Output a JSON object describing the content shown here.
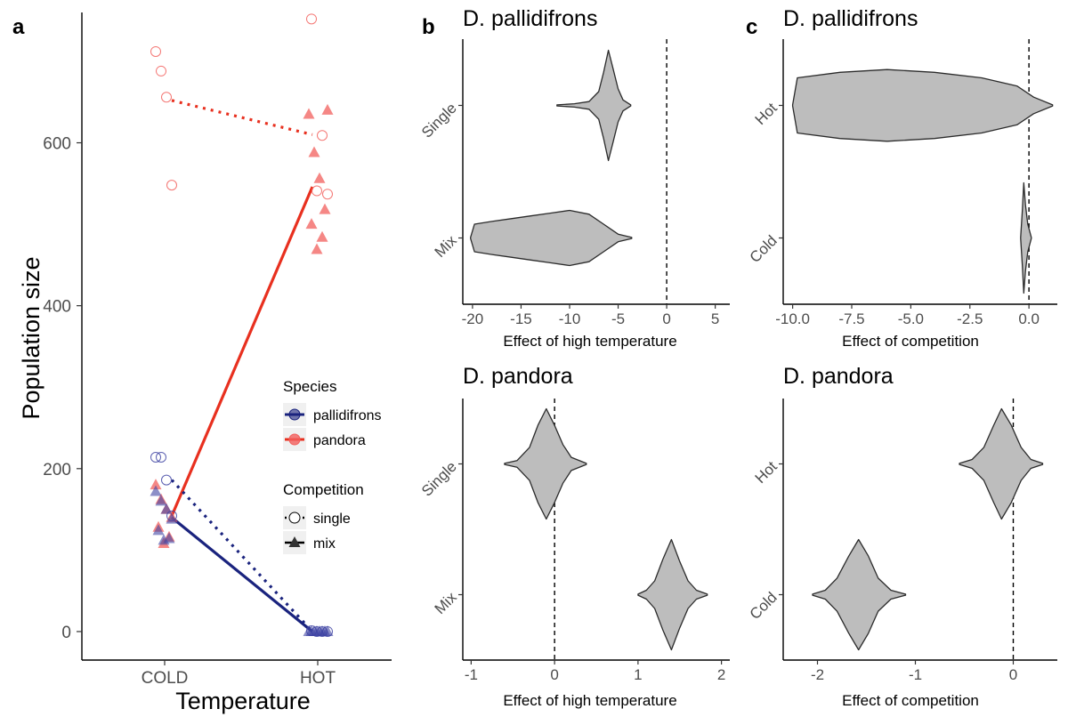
{
  "chart_data": [
    {
      "panel_letter": "a",
      "type": "scatter",
      "xlabel": "Temperature",
      "ylabel": "Population size",
      "categories": [
        "COLD",
        "HOT"
      ],
      "y_ticks": [
        0,
        200,
        400,
        600
      ],
      "ylim": [
        -35,
        760
      ],
      "grid": false,
      "legend": {
        "placement": "right",
        "species_title": "Species",
        "species": [
          {
            "name": "pallidifrons",
            "color": "#1a237e"
          },
          {
            "name": "pandora",
            "color": "#e8301f"
          }
        ],
        "competition_title": "Competition",
        "competition": [
          {
            "name": "single",
            "line": "dotted",
            "marker": "open-circle"
          },
          {
            "name": "mix",
            "line": "solid",
            "marker": "filled-triangle"
          }
        ]
      },
      "series": [
        {
          "species": "pandora",
          "competition": "single",
          "color": "#e8301f",
          "points": [
            {
              "x": "COLD",
              "y": 712
            },
            {
              "x": "COLD",
              "y": 688
            },
            {
              "x": "COLD",
              "y": 656
            },
            {
              "x": "COLD",
              "y": 548
            },
            {
              "x": "HOT",
              "y": 752
            },
            {
              "x": "HOT",
              "y": 609
            },
            {
              "x": "HOT",
              "y": 541
            },
            {
              "x": "HOT",
              "y": 537
            }
          ],
          "means": [
            {
              "x": "COLD",
              "y": 652
            },
            {
              "x": "HOT",
              "y": 610
            }
          ]
        },
        {
          "species": "pandora",
          "competition": "mix",
          "color": "#e8301f",
          "points": [
            {
              "x": "COLD",
              "y": 180
            },
            {
              "x": "COLD",
              "y": 162
            },
            {
              "x": "COLD",
              "y": 150
            },
            {
              "x": "COLD",
              "y": 140
            },
            {
              "x": "COLD",
              "y": 128
            },
            {
              "x": "COLD",
              "y": 116
            },
            {
              "x": "COLD",
              "y": 108
            },
            {
              "x": "HOT",
              "y": 640
            },
            {
              "x": "HOT",
              "y": 635
            },
            {
              "x": "HOT",
              "y": 588
            },
            {
              "x": "HOT",
              "y": 556
            },
            {
              "x": "HOT",
              "y": 518
            },
            {
              "x": "HOT",
              "y": 500
            },
            {
              "x": "HOT",
              "y": 484
            },
            {
              "x": "HOT",
              "y": 469
            }
          ],
          "means": [
            {
              "x": "COLD",
              "y": 142
            },
            {
              "x": "HOT",
              "y": 546
            }
          ]
        },
        {
          "species": "pallidifrons",
          "competition": "single",
          "color": "#1a237e",
          "points": [
            {
              "x": "COLD",
              "y": 214
            },
            {
              "x": "COLD",
              "y": 214
            },
            {
              "x": "COLD",
              "y": 186
            },
            {
              "x": "COLD",
              "y": 142
            },
            {
              "x": "HOT",
              "y": 1
            },
            {
              "x": "HOT",
              "y": 0
            },
            {
              "x": "HOT",
              "y": 0
            },
            {
              "x": "HOT",
              "y": 0
            }
          ],
          "means": [
            {
              "x": "COLD",
              "y": 186
            },
            {
              "x": "HOT",
              "y": 0
            }
          ]
        },
        {
          "species": "pallidifrons",
          "competition": "mix",
          "color": "#1a237e",
          "points": [
            {
              "x": "COLD",
              "y": 172
            },
            {
              "x": "COLD",
              "y": 160
            },
            {
              "x": "COLD",
              "y": 150
            },
            {
              "x": "COLD",
              "y": 138
            },
            {
              "x": "COLD",
              "y": 124
            },
            {
              "x": "COLD",
              "y": 114
            },
            {
              "x": "COLD",
              "y": 112
            },
            {
              "x": "HOT",
              "y": 0
            },
            {
              "x": "HOT",
              "y": 0
            },
            {
              "x": "HOT",
              "y": 0
            },
            {
              "x": "HOT",
              "y": 0
            },
            {
              "x": "HOT",
              "y": 0
            },
            {
              "x": "HOT",
              "y": 0
            },
            {
              "x": "HOT",
              "y": 0
            },
            {
              "x": "HOT",
              "y": 0
            }
          ],
          "means": [
            {
              "x": "COLD",
              "y": 140
            },
            {
              "x": "HOT",
              "y": 0
            }
          ]
        }
      ]
    },
    {
      "panel_letter": "b",
      "type": "violin",
      "title": "D. pallidifrons",
      "xlabel": "Effect of high temperature",
      "categories": [
        "Mix",
        "Single"
      ],
      "x_ticks": [
        "-20",
        "-15",
        "-10",
        "-5",
        "0",
        "5"
      ],
      "xlim": [
        -21,
        6.5
      ],
      "ref_line": 0,
      "violins": [
        {
          "group": "Single",
          "min": -11.3,
          "max": -3.7,
          "profile": [
            [
              -11.3,
              0.01
            ],
            [
              -9.5,
              0.03
            ],
            [
              -8,
              0.07
            ],
            [
              -7,
              0.25
            ],
            [
              -6.5,
              0.6
            ],
            [
              -6,
              1.0
            ],
            [
              -5.5,
              0.65
            ],
            [
              -5,
              0.3
            ],
            [
              -4.5,
              0.1
            ],
            [
              -3.7,
              0.01
            ]
          ]
        },
        {
          "group": "Mix",
          "min": -20.2,
          "max": -3.6,
          "profile": [
            [
              -20.2,
              0.01
            ],
            [
              -19.8,
              0.25
            ],
            [
              -18,
              0.3
            ],
            [
              -16,
              0.35
            ],
            [
              -14,
              0.4
            ],
            [
              -12,
              0.45
            ],
            [
              -10,
              0.5
            ],
            [
              -8,
              0.43
            ],
            [
              -6.5,
              0.25
            ],
            [
              -5,
              0.07
            ],
            [
              -3.6,
              0.01
            ]
          ]
        }
      ]
    },
    {
      "panel_letter": "c",
      "type": "violin",
      "title": "D. pallidifrons",
      "xlabel": "Effect of competition",
      "categories": [
        "Cold",
        "Hot"
      ],
      "x_ticks": [
        "-10.0",
        "-7.5",
        "-5.0",
        "-2.5",
        "0.0"
      ],
      "xlim": [
        -10.4,
        1.2
      ],
      "ref_line": 0,
      "violins": [
        {
          "group": "Hot",
          "min": -10.0,
          "max": 1.0,
          "profile": [
            [
              -10,
              0.01
            ],
            [
              -9.8,
              0.5
            ],
            [
              -8,
              0.6
            ],
            [
              -6,
              0.65
            ],
            [
              -4,
              0.6
            ],
            [
              -2,
              0.5
            ],
            [
              -0.5,
              0.35
            ],
            [
              0.2,
              0.15
            ],
            [
              1.0,
              0.01
            ]
          ]
        },
        {
          "group": "Cold",
          "min": -0.35,
          "max": 0.1,
          "profile": [
            [
              -0.35,
              0.01
            ],
            [
              -0.28,
              0.5
            ],
            [
              -0.22,
              1.0
            ],
            [
              -0.15,
              0.6
            ],
            [
              -0.05,
              0.25
            ],
            [
              0.1,
              0.01
            ]
          ]
        }
      ]
    },
    {
      "panel_letter": "",
      "type": "violin",
      "title": "D. pandora",
      "xlabel": "Effect of high temperature",
      "categories": [
        "Mix",
        "Single"
      ],
      "x_ticks": [
        "-1",
        "0",
        "1",
        "2"
      ],
      "xlim": [
        -1.1,
        2.1
      ],
      "ref_line": 0,
      "violins": [
        {
          "group": "Single",
          "min": -0.6,
          "max": 0.38,
          "profile": [
            [
              -0.6,
              0.01
            ],
            [
              -0.45,
              0.06
            ],
            [
              -0.3,
              0.3
            ],
            [
              -0.2,
              0.7
            ],
            [
              -0.1,
              1.0
            ],
            [
              0.0,
              0.7
            ],
            [
              0.1,
              0.35
            ],
            [
              0.2,
              0.12
            ],
            [
              0.38,
              0.01
            ]
          ]
        },
        {
          "group": "Mix",
          "min": 1.0,
          "max": 1.83,
          "profile": [
            [
              1.0,
              0.01
            ],
            [
              1.1,
              0.08
            ],
            [
              1.2,
              0.25
            ],
            [
              1.3,
              0.65
            ],
            [
              1.4,
              1.0
            ],
            [
              1.5,
              0.6
            ],
            [
              1.6,
              0.25
            ],
            [
              1.7,
              0.08
            ],
            [
              1.83,
              0.01
            ]
          ]
        }
      ]
    },
    {
      "panel_letter": "",
      "type": "violin",
      "title": "D. pandora",
      "xlabel": "Effect of competition",
      "categories": [
        "Cold",
        "Hot"
      ],
      "x_ticks": [
        "-2",
        "-1",
        "0"
      ],
      "xlim": [
        -2.35,
        0.45
      ],
      "ref_line": 0,
      "violins": [
        {
          "group": "Hot",
          "min": -0.55,
          "max": 0.3,
          "profile": [
            [
              -0.55,
              0.01
            ],
            [
              -0.42,
              0.08
            ],
            [
              -0.3,
              0.3
            ],
            [
              -0.2,
              0.7
            ],
            [
              -0.12,
              1.0
            ],
            [
              -0.02,
              0.7
            ],
            [
              0.08,
              0.3
            ],
            [
              0.18,
              0.08
            ],
            [
              0.3,
              0.01
            ]
          ]
        },
        {
          "group": "Cold",
          "min": -2.05,
          "max": -1.1,
          "profile": [
            [
              -2.05,
              0.01
            ],
            [
              -1.92,
              0.08
            ],
            [
              -1.8,
              0.3
            ],
            [
              -1.68,
              0.7
            ],
            [
              -1.58,
              1.0
            ],
            [
              -1.48,
              0.7
            ],
            [
              -1.38,
              0.3
            ],
            [
              -1.25,
              0.08
            ],
            [
              -1.1,
              0.01
            ]
          ]
        }
      ]
    }
  ]
}
